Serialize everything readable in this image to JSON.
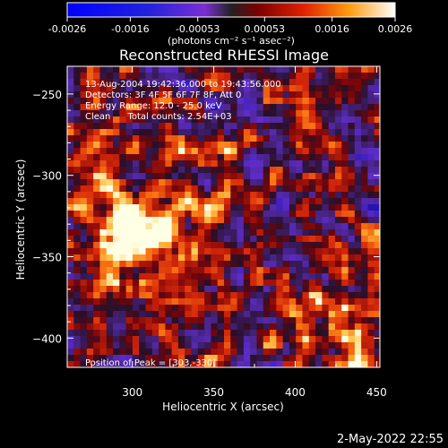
{
  "colorbar": {
    "ticks": [
      "-0.0026",
      "-0.0016",
      "-0.00053",
      "0.00053",
      "0.0016",
      "0.0026"
    ],
    "unit_label": "(photons cm⁻² s⁻¹ asec⁻²)"
  },
  "chart_data": {
    "type": "heatmap",
    "title": "Reconstructed RHESSI Image",
    "xlabel": "Heliocentric X (arcsec)",
    "ylabel": "Heliocentric Y (arcsec)",
    "xlim": [
      260,
      452
    ],
    "ylim": [
      -418,
      -233
    ],
    "x_ticks": [
      300,
      350,
      400,
      450
    ],
    "x_tick_labels": [
      "300",
      "350",
      "400",
      "450"
    ],
    "y_ticks": [
      -250,
      -300,
      -350,
      -400
    ],
    "y_tick_labels": [
      "−250",
      "−300",
      "−350",
      "−400"
    ],
    "colorbar_range": [
      -0.0026,
      0.0026
    ],
    "peak": {
      "x": 303,
      "y": -330
    },
    "annotations": [
      "13-Aug-2004 19:42:36.000 to 19:43:56.000",
      "Detectors: 3F 4F 5F 6F 7F 8F, Att 0",
      "Energy Range: 12.0 - 25.0 keV",
      "Clean      Total counts: 2.54E+03"
    ],
    "peak_label": "Position of Peak = [303,-330]"
  },
  "footer": {
    "date": "2-May-2022 22:55"
  }
}
